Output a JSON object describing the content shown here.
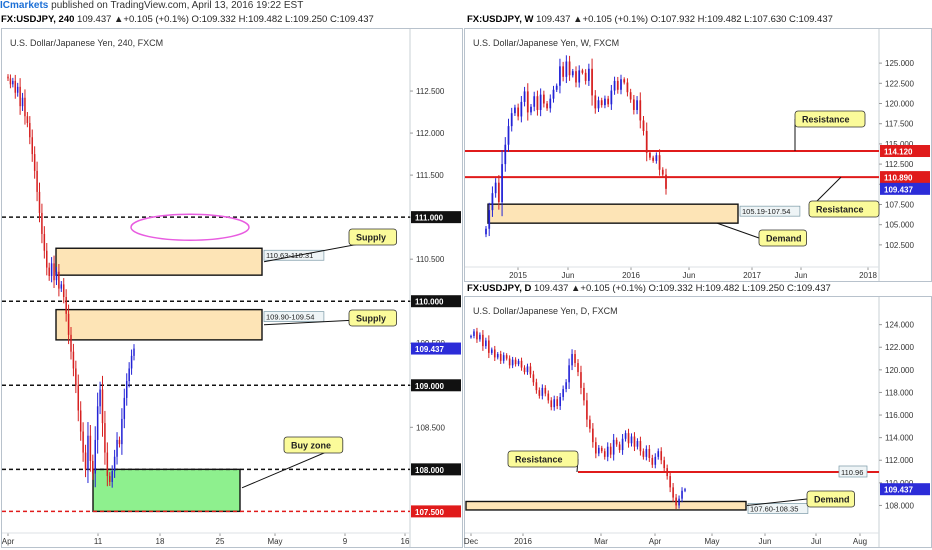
{
  "header": {
    "brand": "ICmarkets",
    "published": " published on TradingView.com, April 13, 2016 19:22 EST"
  },
  "panels": {
    "h4": {
      "header_symbol": "FX:USDJPY, 240",
      "header_ohlc": "109.437 ▲+0.105 (+0.1%) O:109.332 H:109.482 L:109.250 C:109.437",
      "title": "U.S. Dollar/Japanese Yen, 240, FXCM"
    },
    "weekly": {
      "header_symbol": "FX:USDJPY, W",
      "header_ohlc": "109.437 ▲+0.105 (+0.1%) O:107.932 H:109.482 L:107.630 C:109.437",
      "title": "U.S. Dollar/Japanese Yen, W, FXCM"
    },
    "daily": {
      "header_symbol": "FX:USDJPY, D",
      "header_ohlc": "109.437 ▲+0.105 (+0.1%) O:109.332 H:109.482 L:109.250 C:109.437",
      "title": "U.S. Dollar/Japanese Yen, D, FXCM"
    }
  },
  "colors": {
    "bull": "#2323d6",
    "bear": "#d62020",
    "zone_fill": "#fde4b6",
    "buy_fill": "#8ef08e",
    "resistance": "#e01b1b",
    "callout_fill": "#fbfb9a",
    "price_tag": "#2c2cd8",
    "ellipse": "#e85ce0"
  },
  "chart_data": [
    {
      "id": "h4",
      "type": "candlestick",
      "title": "U.S. Dollar/Japanese Yen, 240, FXCM",
      "ylim": [
        107.35,
        113.0
      ],
      "y_ticks": [
        108.5,
        109.0,
        109.5,
        110.0,
        110.5,
        111.0,
        111.5,
        112.0,
        112.5
      ],
      "x_ticks": [
        "Apr",
        "11",
        "18",
        "25",
        "May",
        "9",
        "16"
      ],
      "last_price": 109.437,
      "price_tags": [
        {
          "value": 111.0,
          "label": "111.000",
          "style": "dark"
        },
        {
          "value": 110.0,
          "label": "110.000",
          "style": "dark"
        },
        {
          "value": 109.437,
          "label": "109.437",
          "style": "blue"
        },
        {
          "value": 109.0,
          "label": "109.000",
          "style": "dark"
        },
        {
          "value": 108.0,
          "label": "108.000",
          "style": "dark"
        },
        {
          "value": 107.5,
          "label": "107.500",
          "style": "red"
        }
      ],
      "zones": [
        {
          "name": "Supply",
          "range": "110.63-110.31",
          "y1": 110.31,
          "y2": 110.63,
          "kind": "supply"
        },
        {
          "name": "Supply",
          "range": "109.90-109.54",
          "y1": 109.54,
          "y2": 109.9,
          "kind": "supply"
        },
        {
          "name": "Buy zone",
          "range": "",
          "y1": 107.5,
          "y2": 108.0,
          "kind": "buy"
        }
      ],
      "levels": [
        111.0,
        110.0,
        109.0,
        108.0,
        107.5
      ],
      "close_path": [
        112.65,
        112.58,
        112.62,
        112.48,
        112.55,
        112.32,
        112.42,
        112.2,
        112.12,
        111.95,
        111.75,
        111.55,
        111.3,
        111.05,
        110.8,
        110.6,
        110.4,
        110.3,
        110.45,
        110.25,
        110.35,
        110.15,
        110.2,
        110.05,
        109.85,
        109.6,
        109.4,
        109.2,
        109.0,
        108.7,
        108.45,
        108.2,
        108.0,
        108.4,
        108.1,
        107.95,
        108.35,
        108.75,
        108.95,
        108.55,
        108.2,
        107.92,
        107.85,
        107.98,
        108.15,
        108.35,
        108.3,
        108.6,
        108.85,
        109.05,
        109.2,
        109.35,
        109.437
      ]
    },
    {
      "id": "weekly",
      "type": "candlestick",
      "title": "U.S. Dollar/Japanese Yen, W, FXCM",
      "ylim": [
        101.0,
        126.5
      ],
      "y_ticks": [
        102.5,
        105.0,
        107.5,
        110.0,
        112.5,
        115.0,
        117.5,
        120.0,
        122.5,
        125.0
      ],
      "x_ticks": [
        "2015",
        "Jun",
        "2016",
        "Jun",
        "2017",
        "Jun",
        "2018"
      ],
      "last_price": 109.437,
      "price_tags": [
        {
          "value": 114.12,
          "label": "114.120",
          "style": "red"
        },
        {
          "value": 110.89,
          "label": "110.890",
          "style": "red"
        },
        {
          "value": 109.437,
          "label": "109.437",
          "style": "blue"
        }
      ],
      "zones": [
        {
          "name": "Demand",
          "range": "105.19-107.54",
          "y1": 105.19,
          "y2": 107.54,
          "kind": "demand"
        }
      ],
      "resistance_levels": [
        114.12,
        110.89
      ],
      "labels": [
        "Resistance",
        "Resistance",
        "Demand"
      ],
      "close_path": [
        104.5,
        106.8,
        108.9,
        110.2,
        107.8,
        112.5,
        114.9,
        117.2,
        118.8,
        119.5,
        118.4,
        120.2,
        121.5,
        118.9,
        119.6,
        120.9,
        119.2,
        121.1,
        120.0,
        119.4,
        120.6,
        121.7,
        122.2,
        124.6,
        123.3,
        125.2,
        123.5,
        124.0,
        122.6,
        124.1,
        123.8,
        122.8,
        124.3,
        121.0,
        119.4,
        120.4,
        119.8,
        120.6,
        119.9,
        121.6,
        122.8,
        121.7,
        123.0,
        122.6,
        121.4,
        120.5,
        119.2,
        120.4,
        117.9,
        116.6,
        113.9,
        113.3,
        112.9,
        113.6,
        111.8,
        111.2,
        109.437
      ]
    },
    {
      "id": "daily",
      "type": "candlestick",
      "title": "U.S. Dollar/Japanese Yen, D, FXCM",
      "ylim": [
        106.8,
        124.5
      ],
      "y_ticks": [
        108.0,
        110.0,
        112.0,
        114.0,
        116.0,
        118.0,
        120.0,
        122.0,
        124.0
      ],
      "x_ticks": [
        "Dec",
        "2016",
        "Mar",
        "Apr",
        "May",
        "Jun",
        "Jul",
        "Aug"
      ],
      "last_price": 109.437,
      "price_tags": [
        {
          "value": 109.437,
          "label": "109.437",
          "style": "blue"
        }
      ],
      "zones": [
        {
          "name": "Demand",
          "range": "107.60-108.35",
          "y1": 107.6,
          "y2": 108.35,
          "kind": "demand"
        }
      ],
      "resistance_levels": [
        110.96
      ],
      "resistance_label": "110.96",
      "labels": [
        "Resistance",
        "Demand"
      ],
      "close_path": [
        123.0,
        123.4,
        122.7,
        123.1,
        122.1,
        122.6,
        121.5,
        121.8,
        121.1,
        121.4,
        120.8,
        121.3,
        121.0,
        120.4,
        120.9,
        120.5,
        120.8,
        120.2,
        119.8,
        120.3,
        119.6,
        118.9,
        118.2,
        117.7,
        118.4,
        117.9,
        117.3,
        116.7,
        117.4,
        116.8,
        117.6,
        118.3,
        118.9,
        120.4,
        121.4,
        120.6,
        119.8,
        118.4,
        117.3,
        115.6,
        114.8,
        113.6,
        112.6,
        113.1,
        112.8,
        112.3,
        113.2,
        112.5,
        113.8,
        113.4,
        112.9,
        113.9,
        114.4,
        113.5,
        114.1,
        113.2,
        113.7,
        112.8,
        112.3,
        113.0,
        112.2,
        111.6,
        112.3,
        112.8,
        112.0,
        111.3,
        110.6,
        109.6,
        108.7,
        108.0,
        108.6,
        109.3,
        109.437
      ]
    }
  ]
}
